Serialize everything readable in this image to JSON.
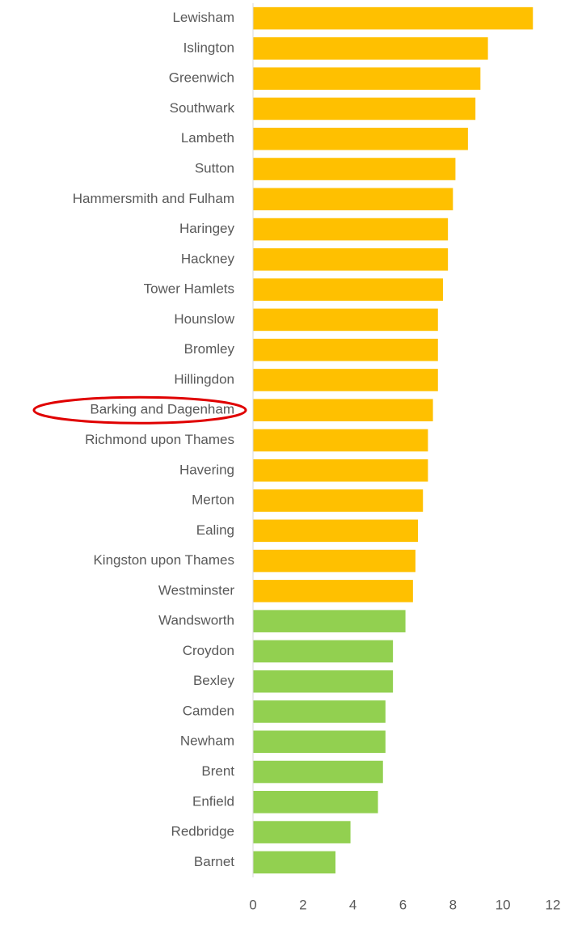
{
  "chart_data": {
    "type": "hbar",
    "categories": [
      "Lewisham",
      "Islington",
      "Greenwich",
      "Southwark",
      "Lambeth",
      "Sutton",
      "Hammersmith and Fulham",
      "Haringey",
      "Hackney",
      "Tower Hamlets",
      "Hounslow",
      "Bromley",
      "Hillingdon",
      "Barking and Dagenham",
      "Richmond upon Thames",
      "Havering",
      "Merton",
      "Ealing",
      "Kingston upon Thames",
      "Westminster",
      "Wandsworth",
      "Croydon",
      "Bexley",
      "Camden",
      "Newham",
      "Brent",
      "Enfield",
      "Redbridge",
      "Barnet"
    ],
    "values": [
      11.2,
      9.4,
      9.1,
      8.9,
      8.6,
      8.1,
      8.0,
      7.8,
      7.8,
      7.6,
      7.4,
      7.4,
      7.4,
      7.2,
      7.0,
      7.0,
      6.8,
      6.6,
      6.5,
      6.4,
      6.1,
      5.6,
      5.6,
      5.3,
      5.3,
      5.2,
      5.0,
      3.9,
      3.3
    ],
    "colors": [
      "#ffc000",
      "#ffc000",
      "#ffc000",
      "#ffc000",
      "#ffc000",
      "#ffc000",
      "#ffc000",
      "#ffc000",
      "#ffc000",
      "#ffc000",
      "#ffc000",
      "#ffc000",
      "#ffc000",
      "#ffc000",
      "#ffc000",
      "#ffc000",
      "#ffc000",
      "#ffc000",
      "#ffc000",
      "#ffc000",
      "#92d050",
      "#92d050",
      "#92d050",
      "#92d050",
      "#92d050",
      "#92d050",
      "#92d050",
      "#92d050",
      "#92d050"
    ],
    "highlight": 13,
    "xlim": [
      0,
      12
    ],
    "xticks": [
      0,
      2,
      4,
      6,
      8,
      10,
      12
    ],
    "grid": false
  }
}
